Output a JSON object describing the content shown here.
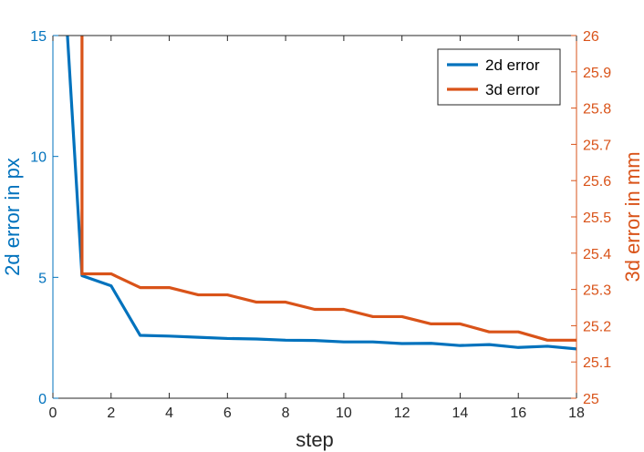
{
  "chart_data": {
    "type": "line",
    "xlabel": "step",
    "ylabel_left": "2d error in px",
    "ylabel_right": "3d error in mm",
    "xlim": [
      0,
      18
    ],
    "ylim_left": [
      0,
      15
    ],
    "ylim_right": [
      25,
      26
    ],
    "x_ticks": [
      "0",
      "2",
      "4",
      "6",
      "8",
      "10",
      "12",
      "14",
      "16",
      "18"
    ],
    "y_left_ticks": [
      "0",
      "5",
      "10",
      "15"
    ],
    "y_right_ticks": [
      "25",
      "25.1",
      "25.2",
      "25.3",
      "25.4",
      "25.5",
      "25.6",
      "25.7",
      "25.8",
      "25.9",
      "26"
    ],
    "grid": false,
    "legend_position": "top-right",
    "colors": {
      "left_axis": "#0072BD",
      "right_axis": "#D95319",
      "series_2d": "#0072BD",
      "series_3d": "#D95319"
    },
    "series": [
      {
        "name": "2d error",
        "axis": "left",
        "x": [
          0.5,
          1,
          2,
          3,
          4,
          5,
          6,
          7,
          8,
          9,
          10,
          11,
          12,
          13,
          14,
          15,
          16,
          17,
          18
        ],
        "y": [
          15,
          5.07,
          4.65,
          2.6,
          2.57,
          2.52,
          2.47,
          2.45,
          2.4,
          2.39,
          2.33,
          2.33,
          2.26,
          2.27,
          2.18,
          2.22,
          2.1,
          2.15,
          2.04
        ]
      },
      {
        "name": "3d error",
        "axis": "right",
        "x": [
          1,
          1,
          2,
          3,
          4,
          5,
          6,
          7,
          8,
          9,
          10,
          11,
          12,
          13,
          14,
          15,
          16,
          17,
          18
        ],
        "y": [
          26,
          25.343,
          25.343,
          25.305,
          25.305,
          25.285,
          25.285,
          25.265,
          25.265,
          25.245,
          25.245,
          25.225,
          25.225,
          25.205,
          25.205,
          25.183,
          25.183,
          25.16,
          25.16
        ]
      }
    ]
  }
}
